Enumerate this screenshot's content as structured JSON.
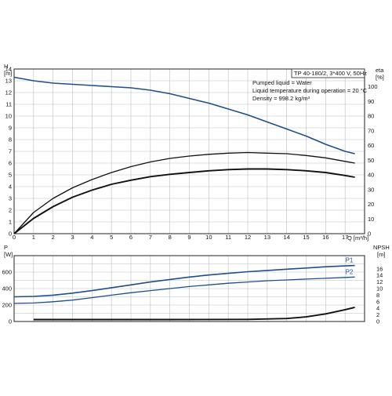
{
  "chart_data": [
    {
      "type": "line",
      "title_box": "TP 40-180/2, 3*400 V, 50Hz",
      "info_lines": [
        "Pumped liquid = Water",
        "Liquid temperature during operation = 20 °C",
        "Density = 998.2 kg/m³"
      ],
      "ylabel_left": [
        "H",
        "[m]"
      ],
      "ylabel_right": [
        "eta",
        "[%]"
      ],
      "xlabel": "Q [m³/h]",
      "xlim": [
        0,
        18
      ],
      "ylim_left": [
        0,
        14
      ],
      "ylim_right": [
        0,
        112
      ],
      "x_ticks": [
        "0",
        "1",
        "2",
        "3",
        "4",
        "5",
        "6",
        "7",
        "8",
        "9",
        "10",
        "11",
        "12",
        "13",
        "14",
        "15",
        "16",
        "17"
      ],
      "y_ticks_left": [
        "0",
        "1",
        "2",
        "3",
        "4",
        "5",
        "6",
        "7",
        "8",
        "9",
        "10",
        "11",
        "12",
        "13",
        "14"
      ],
      "y_ticks_right": [
        "0",
        "10",
        "20",
        "30",
        "40",
        "50",
        "60",
        "70",
        "80",
        "90",
        "100"
      ],
      "grid": true,
      "series": [
        {
          "axis": "left",
          "color": "#1f4e8c",
          "points": [
            [
              0,
              13.3
            ],
            [
              1,
              13.0
            ],
            [
              2,
              12.8
            ],
            [
              3,
              12.7
            ],
            [
              4,
              12.6
            ],
            [
              5,
              12.5
            ],
            [
              6,
              12.4
            ],
            [
              7,
              12.2
            ],
            [
              8,
              11.9
            ],
            [
              9,
              11.5
            ],
            [
              10,
              11.1
            ],
            [
              11,
              10.6
            ],
            [
              12,
              10.1
            ],
            [
              13,
              9.5
            ],
            [
              14,
              8.9
            ],
            [
              15,
              8.3
            ],
            [
              16,
              7.6
            ],
            [
              17,
              7.0
            ],
            [
              17.5,
              6.8
            ]
          ]
        },
        {
          "axis": "left",
          "color": "#111111",
          "points": [
            [
              0,
              0
            ],
            [
              1,
              1.8
            ],
            [
              2,
              3.0
            ],
            [
              3,
              3.9
            ],
            [
              4,
              4.6
            ],
            [
              5,
              5.2
            ],
            [
              6,
              5.7
            ],
            [
              7,
              6.1
            ],
            [
              8,
              6.4
            ],
            [
              9,
              6.6
            ],
            [
              10,
              6.75
            ],
            [
              11,
              6.85
            ],
            [
              12,
              6.9
            ],
            [
              13,
              6.85
            ],
            [
              14,
              6.8
            ],
            [
              15,
              6.65
            ],
            [
              16,
              6.45
            ],
            [
              17,
              6.15
            ],
            [
              17.5,
              6.0
            ]
          ]
        },
        {
          "axis": "left",
          "color": "#111111",
          "points": [
            [
              0,
              0
            ],
            [
              1,
              1.3
            ],
            [
              2,
              2.3
            ],
            [
              3,
              3.1
            ],
            [
              4,
              3.7
            ],
            [
              5,
              4.2
            ],
            [
              6,
              4.55
            ],
            [
              7,
              4.85
            ],
            [
              8,
              5.05
            ],
            [
              9,
              5.2
            ],
            [
              10,
              5.35
            ],
            [
              11,
              5.45
            ],
            [
              12,
              5.5
            ],
            [
              13,
              5.5
            ],
            [
              14,
              5.45
            ],
            [
              15,
              5.35
            ],
            [
              16,
              5.2
            ],
            [
              17,
              4.95
            ],
            [
              17.5,
              4.8
            ]
          ]
        }
      ]
    },
    {
      "type": "line",
      "ylabel_left": [
        "P",
        "[W]"
      ],
      "ylabel_right": [
        "NPSH",
        "[m]"
      ],
      "xlim": [
        0,
        18
      ],
      "ylim_left": [
        0,
        800
      ],
      "ylim_right": [
        0,
        20
      ],
      "y_ticks_left": [
        "0",
        "200",
        "400",
        "600"
      ],
      "y_ticks_right": [
        "0",
        "2",
        "4",
        "6",
        "8",
        "10",
        "12",
        "14",
        "16"
      ],
      "grid": true,
      "series": [
        {
          "name": "P1",
          "axis": "left",
          "color": "#1f4e8c",
          "points": [
            [
              0,
              300
            ],
            [
              1,
              305
            ],
            [
              2,
              320
            ],
            [
              3,
              345
            ],
            [
              4,
              375
            ],
            [
              5,
              410
            ],
            [
              6,
              445
            ],
            [
              7,
              480
            ],
            [
              8,
              510
            ],
            [
              9,
              540
            ],
            [
              10,
              565
            ],
            [
              11,
              585
            ],
            [
              12,
              605
            ],
            [
              13,
              620
            ],
            [
              14,
              635
            ],
            [
              15,
              650
            ],
            [
              16,
              665
            ],
            [
              17,
              675
            ],
            [
              17.5,
              680
            ]
          ]
        },
        {
          "name": "P2",
          "axis": "left",
          "color": "#1f4e8c",
          "points": [
            [
              0,
              220
            ],
            [
              1,
              225
            ],
            [
              2,
              240
            ],
            [
              3,
              260
            ],
            [
              4,
              290
            ],
            [
              5,
              320
            ],
            [
              6,
              350
            ],
            [
              7,
              375
            ],
            [
              8,
              400
            ],
            [
              9,
              425
            ],
            [
              10,
              445
            ],
            [
              11,
              465
            ],
            [
              12,
              480
            ],
            [
              13,
              495
            ],
            [
              14,
              505
            ],
            [
              15,
              515
            ],
            [
              16,
              525
            ],
            [
              17,
              535
            ],
            [
              17.5,
              540
            ]
          ]
        },
        {
          "axis": "right",
          "color": "#111111",
          "points": [
            [
              1,
              0.6
            ],
            [
              4,
              0.6
            ],
            [
              8,
              0.6
            ],
            [
              12,
              0.65
            ],
            [
              14,
              0.9
            ],
            [
              15,
              1.4
            ],
            [
              16,
              2.3
            ],
            [
              17,
              3.6
            ],
            [
              17.5,
              4.3
            ]
          ]
        }
      ]
    }
  ]
}
